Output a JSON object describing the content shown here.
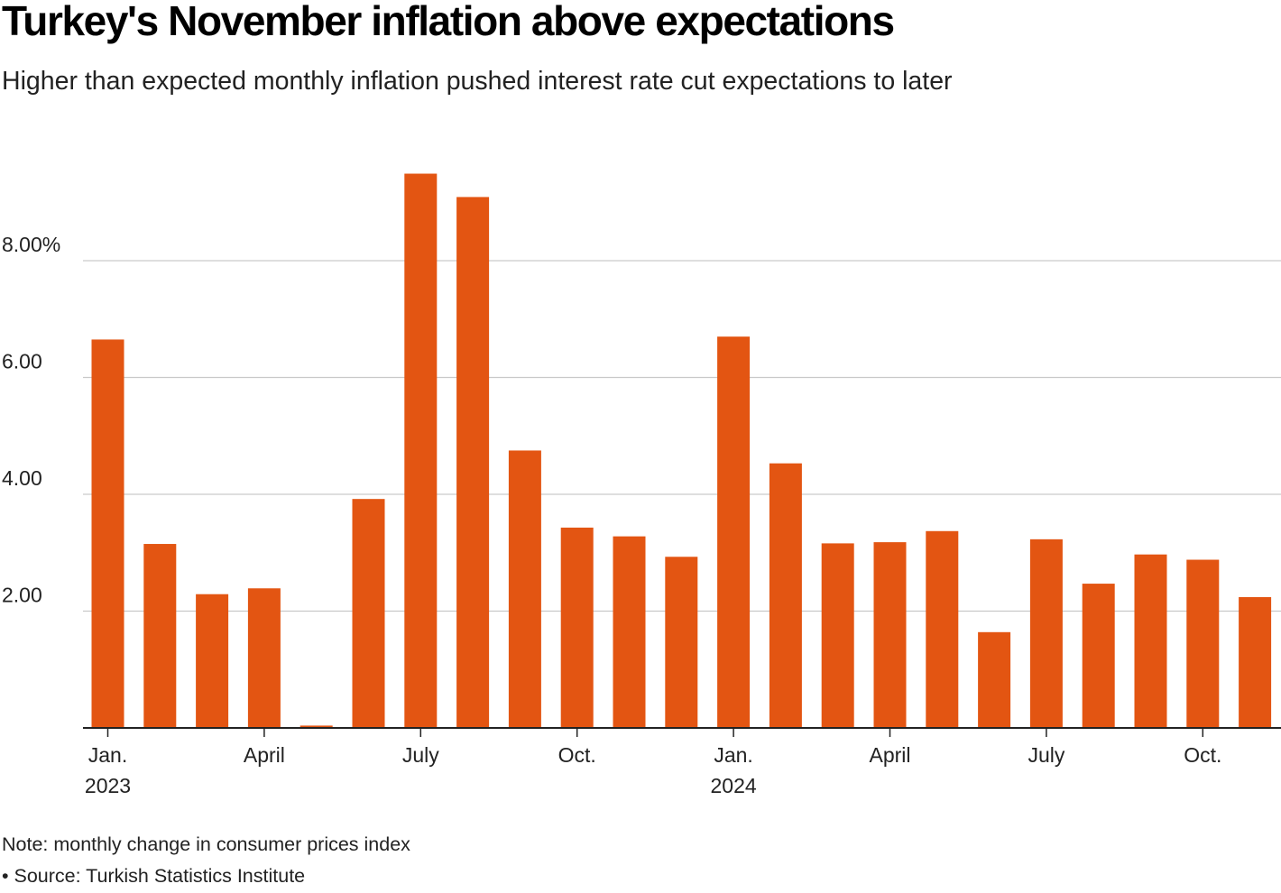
{
  "header": {
    "title": "Turkey's November inflation above expectations",
    "subtitle": "Higher than expected monthly inflation pushed interest rate cut expectations to later"
  },
  "footer": {
    "note": "Note: monthly change in consumer prices index",
    "source": "• Source: Turkish Statistics Institute"
  },
  "colors": {
    "bar": "#e35512",
    "grid": "#c9c9c9",
    "axis": "#222222",
    "text": "#222222"
  },
  "chart_data": {
    "type": "bar",
    "title": "Turkey's November inflation above expectations",
    "subtitle": "Higher than expected monthly inflation pushed interest rate cut expectations to later",
    "xlabel": "",
    "ylabel": "",
    "ylim": [
      0,
      10
    ],
    "grid": true,
    "legend": "none",
    "categories": [
      "Jan 2023",
      "Feb 2023",
      "Mar 2023",
      "Apr 2023",
      "May 2023",
      "Jun 2023",
      "Jul 2023",
      "Aug 2023",
      "Sep 2023",
      "Oct 2023",
      "Nov 2023",
      "Dec 2023",
      "Jan 2024",
      "Feb 2024",
      "Mar 2024",
      "Apr 2024",
      "May 2024",
      "Jun 2024",
      "Jul 2024",
      "Aug 2024",
      "Sep 2024",
      "Oct 2024",
      "Nov 2024"
    ],
    "values": [
      6.65,
      3.15,
      2.29,
      2.39,
      0.04,
      3.92,
      9.49,
      9.09,
      4.75,
      3.43,
      3.28,
      2.93,
      6.7,
      4.53,
      3.16,
      3.18,
      3.37,
      1.64,
      3.23,
      2.47,
      2.97,
      2.88,
      2.24
    ],
    "y_ticks": [
      {
        "value": 2,
        "label": "2.00"
      },
      {
        "value": 4,
        "label": "4.00"
      },
      {
        "value": 6,
        "label": "6.00"
      },
      {
        "value": 8,
        "label": "8.00%"
      }
    ],
    "x_tick_labels": [
      {
        "index": 0,
        "label": "Jan.",
        "sublabel": "2023"
      },
      {
        "index": 3,
        "label": "April",
        "sublabel": ""
      },
      {
        "index": 6,
        "label": "July",
        "sublabel": ""
      },
      {
        "index": 9,
        "label": "Oct.",
        "sublabel": ""
      },
      {
        "index": 12,
        "label": "Jan.",
        "sublabel": "2024"
      },
      {
        "index": 15,
        "label": "April",
        "sublabel": ""
      },
      {
        "index": 18,
        "label": "July",
        "sublabel": ""
      },
      {
        "index": 21,
        "label": "Oct.",
        "sublabel": ""
      }
    ]
  }
}
